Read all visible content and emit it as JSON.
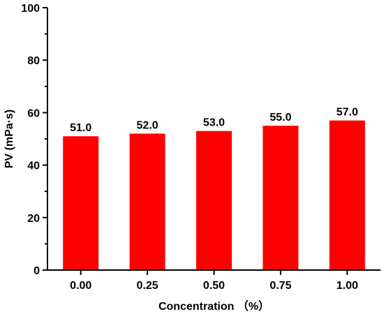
{
  "chart_data": {
    "type": "bar",
    "title": "",
    "xlabel": "Concentration （%）",
    "ylabel": "PV (mPa·s)",
    "categories": [
      "0.00",
      "0.25",
      "0.50",
      "0.75",
      "1.00"
    ],
    "values": [
      51.0,
      52.0,
      53.0,
      55.0,
      57.0
    ],
    "data_labels": [
      "51.0",
      "52.0",
      "53.0",
      "55.0",
      "57.0"
    ],
    "ylim": [
      0,
      100
    ],
    "yticks": [
      0,
      20,
      40,
      60,
      80,
      100
    ],
    "ytick_labels": [
      "0",
      "20",
      "40",
      "60",
      "80",
      "100"
    ],
    "grid": false,
    "legend": "none",
    "bar_color": "#ff0000",
    "axis_color": "#000000"
  }
}
